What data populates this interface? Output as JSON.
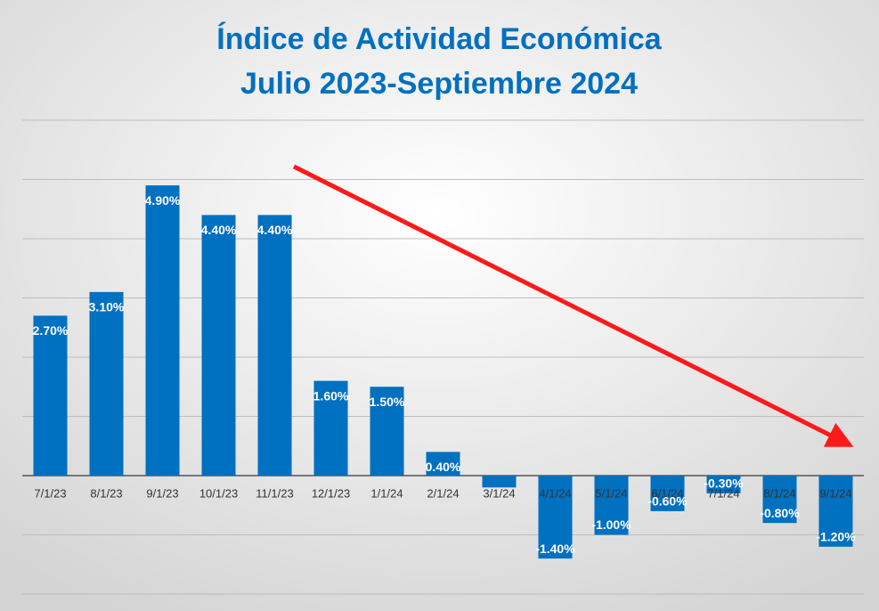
{
  "chart_data": {
    "type": "bar",
    "title": "Índice de Actividad Económica",
    "subtitle": "Julio 2023-Septiembre 2024",
    "categories": [
      "7/1/23",
      "8/1/23",
      "9/1/23",
      "10/1/23",
      "11/1/23",
      "12/1/23",
      "1/1/24",
      "2/1/24",
      "3/1/24",
      "4/1/24",
      "5/1/24",
      "6/1/24",
      "7/1/24",
      "8/1/24",
      "9/1/24"
    ],
    "values": [
      2.7,
      3.1,
      4.9,
      4.4,
      4.4,
      1.6,
      1.5,
      0.4,
      -0.2,
      -1.4,
      -1.0,
      -0.6,
      -0.3,
      -0.8,
      -1.2
    ],
    "value_labels": [
      "2.70%",
      "3.10%",
      "4.90%",
      "4.40%",
      "4.40%",
      "1.60%",
      "1.50%",
      "0.40%",
      null,
      "-1.40%",
      "-1.00%",
      "-0.60%",
      "-0.30%",
      "-0.80%",
      "-1.20%"
    ],
    "color": "#0070c0",
    "ylim": [
      -2,
      6
    ],
    "yticks": [
      -2,
      -1,
      0,
      1,
      2,
      3,
      4,
      5,
      6
    ],
    "grid": true
  }
}
